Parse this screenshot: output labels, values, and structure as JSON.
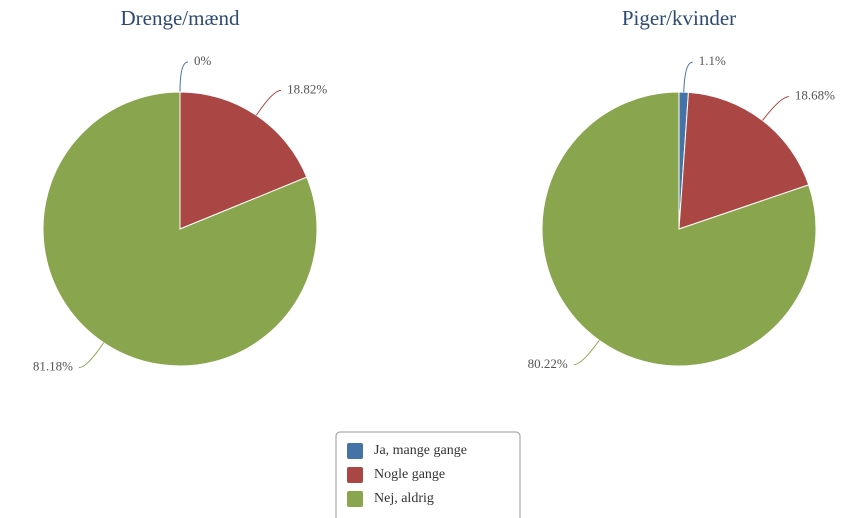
{
  "chart_data": [
    {
      "type": "pie",
      "title": "Drenge/mænd",
      "values": [
        0,
        18.82,
        81.18
      ],
      "value_labels": [
        "0%",
        "18.82%",
        "81.18%"
      ]
    },
    {
      "type": "pie",
      "title": "Piger/kvinder",
      "values": [
        1.1,
        18.68,
        80.22
      ],
      "value_labels": [
        "1.1%",
        "18.68%",
        "80.22%"
      ]
    }
  ],
  "legend": {
    "categories": [
      "Ja, mange gange",
      "Nogle gange",
      "Nej, aldrig"
    ],
    "colors": [
      "#4572a7",
      "#aa4643",
      "#89a54e"
    ]
  }
}
